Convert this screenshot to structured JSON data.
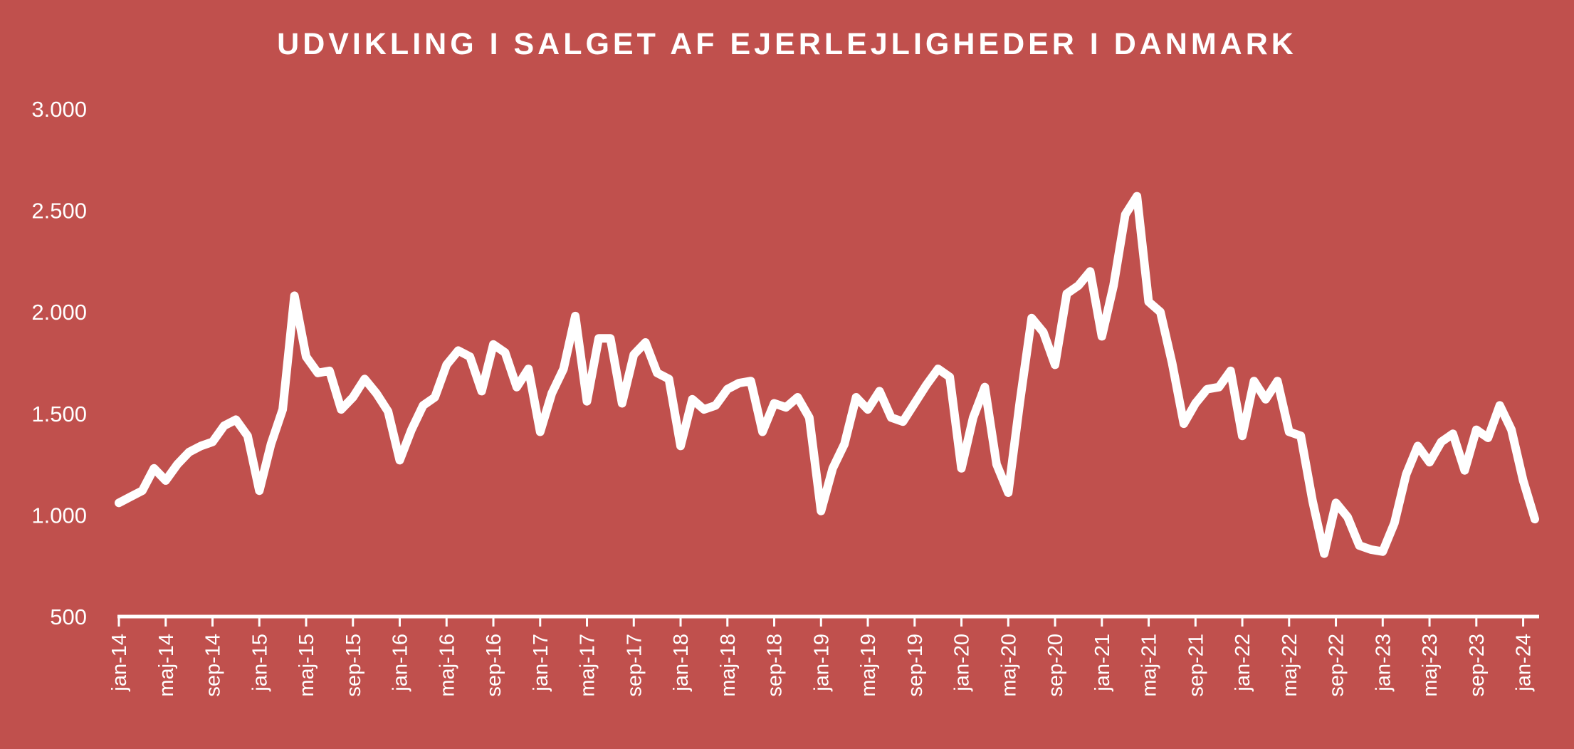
{
  "chart_data": {
    "type": "line",
    "title": "UDVIKLING I SALGET AF EJERLEJLIGHEDER I DANMARK",
    "xlabel": "",
    "ylabel": "",
    "ylim": [
      500,
      3000
    ],
    "yticks": [
      "500",
      "1.000",
      "1.500",
      "2.000",
      "2.500",
      "3.000"
    ],
    "ytick_values": [
      500,
      1000,
      1500,
      2000,
      2500,
      3000
    ],
    "xtick_labels": [
      "jan-14",
      "maj-14",
      "sep-14",
      "jan-15",
      "maj-15",
      "sep-15",
      "jan-16",
      "maj-16",
      "sep-16",
      "jan-17",
      "maj-17",
      "sep-17",
      "jan-18",
      "maj-18",
      "sep-18",
      "jan-19",
      "maj-19",
      "sep-19",
      "jan-20",
      "maj-20",
      "sep-20",
      "jan-21",
      "maj-21",
      "sep-21",
      "jan-22",
      "maj-22",
      "sep-22",
      "jan-23",
      "maj-23",
      "sep-23",
      "jan-24"
    ],
    "grid": false,
    "legend": "none",
    "line_color": "#ffffff",
    "background_color": "#c0504d",
    "series": [
      {
        "values": [
          1060,
          1090,
          1120,
          1230,
          1170,
          1250,
          1310,
          1340,
          1360,
          1440,
          1470,
          1390,
          1120,
          1350,
          1520,
          2080,
          1780,
          1700,
          1710,
          1520,
          1580,
          1670,
          1600,
          1510,
          1270,
          1420,
          1540,
          1580,
          1740,
          1810,
          1780,
          1610,
          1840,
          1800,
          1630,
          1720,
          1410,
          1600,
          1720,
          1980,
          1560,
          1870,
          1870,
          1550,
          1790,
          1850,
          1700,
          1670,
          1340,
          1570,
          1520,
          1540,
          1620,
          1650,
          1660,
          1410,
          1550,
          1530,
          1580,
          1480,
          1020,
          1230,
          1350,
          1580,
          1520,
          1610,
          1480,
          1460,
          1550,
          1640,
          1720,
          1680,
          1230,
          1480,
          1630,
          1250,
          1110,
          1560,
          1970,
          1900,
          1740,
          2090,
          2130,
          2200,
          1880,
          2130,
          2480,
          2570,
          2050,
          2000,
          1750,
          1450,
          1550,
          1620,
          1630,
          1710,
          1390,
          1660,
          1570,
          1660,
          1410,
          1390,
          1070,
          810,
          1060,
          990,
          850,
          830,
          820,
          960,
          1200,
          1340,
          1260,
          1360,
          1400,
          1220,
          1420,
          1380,
          1540,
          1420,
          1170,
          980
        ]
      }
    ]
  }
}
